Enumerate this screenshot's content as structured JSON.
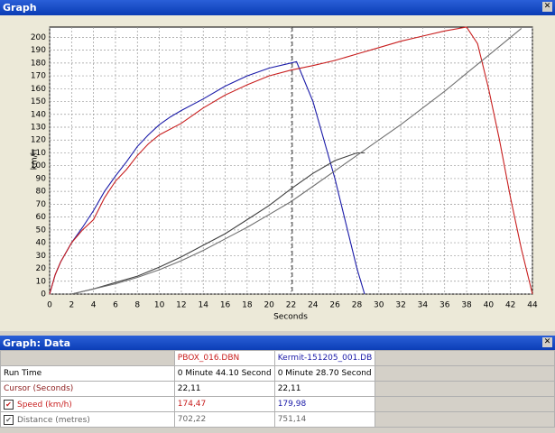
{
  "windows": {
    "graph_title": "Graph",
    "data_title": "Graph: Data"
  },
  "chart_data": {
    "type": "line",
    "xlabel": "Seconds",
    "ylabel": "km/h",
    "xlim": [
      0,
      44
    ],
    "ylim": [
      0,
      208
    ],
    "xticks": [
      0,
      2,
      4,
      6,
      8,
      10,
      12,
      14,
      16,
      18,
      20,
      22,
      24,
      26,
      28,
      30,
      32,
      34,
      36,
      38,
      40,
      42,
      44
    ],
    "yticks": [
      0,
      10,
      20,
      30,
      40,
      50,
      60,
      70,
      80,
      90,
      100,
      110,
      120,
      130,
      140,
      150,
      160,
      170,
      180,
      190,
      200
    ],
    "grid": true,
    "cursor_x": 22.11,
    "series": [
      {
        "color": "#1a1aa8",
        "x": [
          0,
          0.5,
          1,
          2,
          3,
          4,
          5,
          6,
          7,
          8,
          9,
          10,
          11,
          12,
          14,
          16,
          18,
          20,
          22,
          22.5,
          24,
          26,
          27,
          28,
          28.7
        ],
        "values": [
          0,
          15,
          25,
          40,
          52,
          65,
          80,
          92,
          103,
          115,
          124,
          132,
          138,
          143,
          152,
          162,
          170,
          176,
          180,
          181,
          150,
          90,
          55,
          20,
          0
        ]
      },
      {
        "color": "#c81e1e",
        "x": [
          0,
          0.5,
          1,
          2,
          3,
          4,
          5,
          6,
          7,
          8,
          9,
          10,
          12,
          14,
          16,
          18,
          20,
          22,
          24,
          26,
          28,
          30,
          32,
          34,
          36,
          38,
          39,
          40,
          41,
          42,
          43,
          44
        ],
        "values": [
          0,
          15,
          25,
          40,
          50,
          58,
          75,
          88,
          97,
          108,
          117,
          124,
          133,
          145,
          155,
          163,
          170,
          174.5,
          178,
          182,
          187,
          192,
          197,
          201,
          205,
          208,
          195,
          160,
          120,
          75,
          35,
          0
        ]
      },
      {
        "color": "#404040",
        "x": [
          2,
          4,
          6,
          8,
          10,
          12,
          14,
          16,
          18,
          20,
          22,
          24,
          26,
          28,
          28.7
        ],
        "values": [
          0,
          4,
          9,
          14,
          21,
          29,
          38,
          47,
          58,
          69,
          82,
          94,
          104,
          110,
          110
        ]
      },
      {
        "color": "#707070",
        "x": [
          2,
          4,
          6,
          8,
          10,
          12,
          14,
          16,
          18,
          20,
          22,
          24,
          26,
          28,
          30,
          32,
          34,
          36,
          38,
          40,
          42,
          43
        ],
        "values": [
          0,
          4,
          8,
          13,
          19,
          26,
          34,
          43,
          52,
          62,
          72,
          84,
          96,
          108,
          120,
          132,
          145,
          158,
          172,
          186,
          200,
          207
        ]
      }
    ]
  },
  "table": {
    "header": [
      "PBOX_016.DBN",
      "Kermit-151205_001.DB"
    ],
    "rows": [
      [
        "Run Time",
        "0 Minute 44.10 Second",
        "0 Minute 28.70 Second"
      ],
      [
        "Cursor (Seconds)",
        "22,11",
        "22,11"
      ],
      [
        "Speed (km/h)",
        "174,47",
        "179,98"
      ],
      [
        "Distance (metres)",
        "702,22",
        "751,14"
      ]
    ]
  }
}
